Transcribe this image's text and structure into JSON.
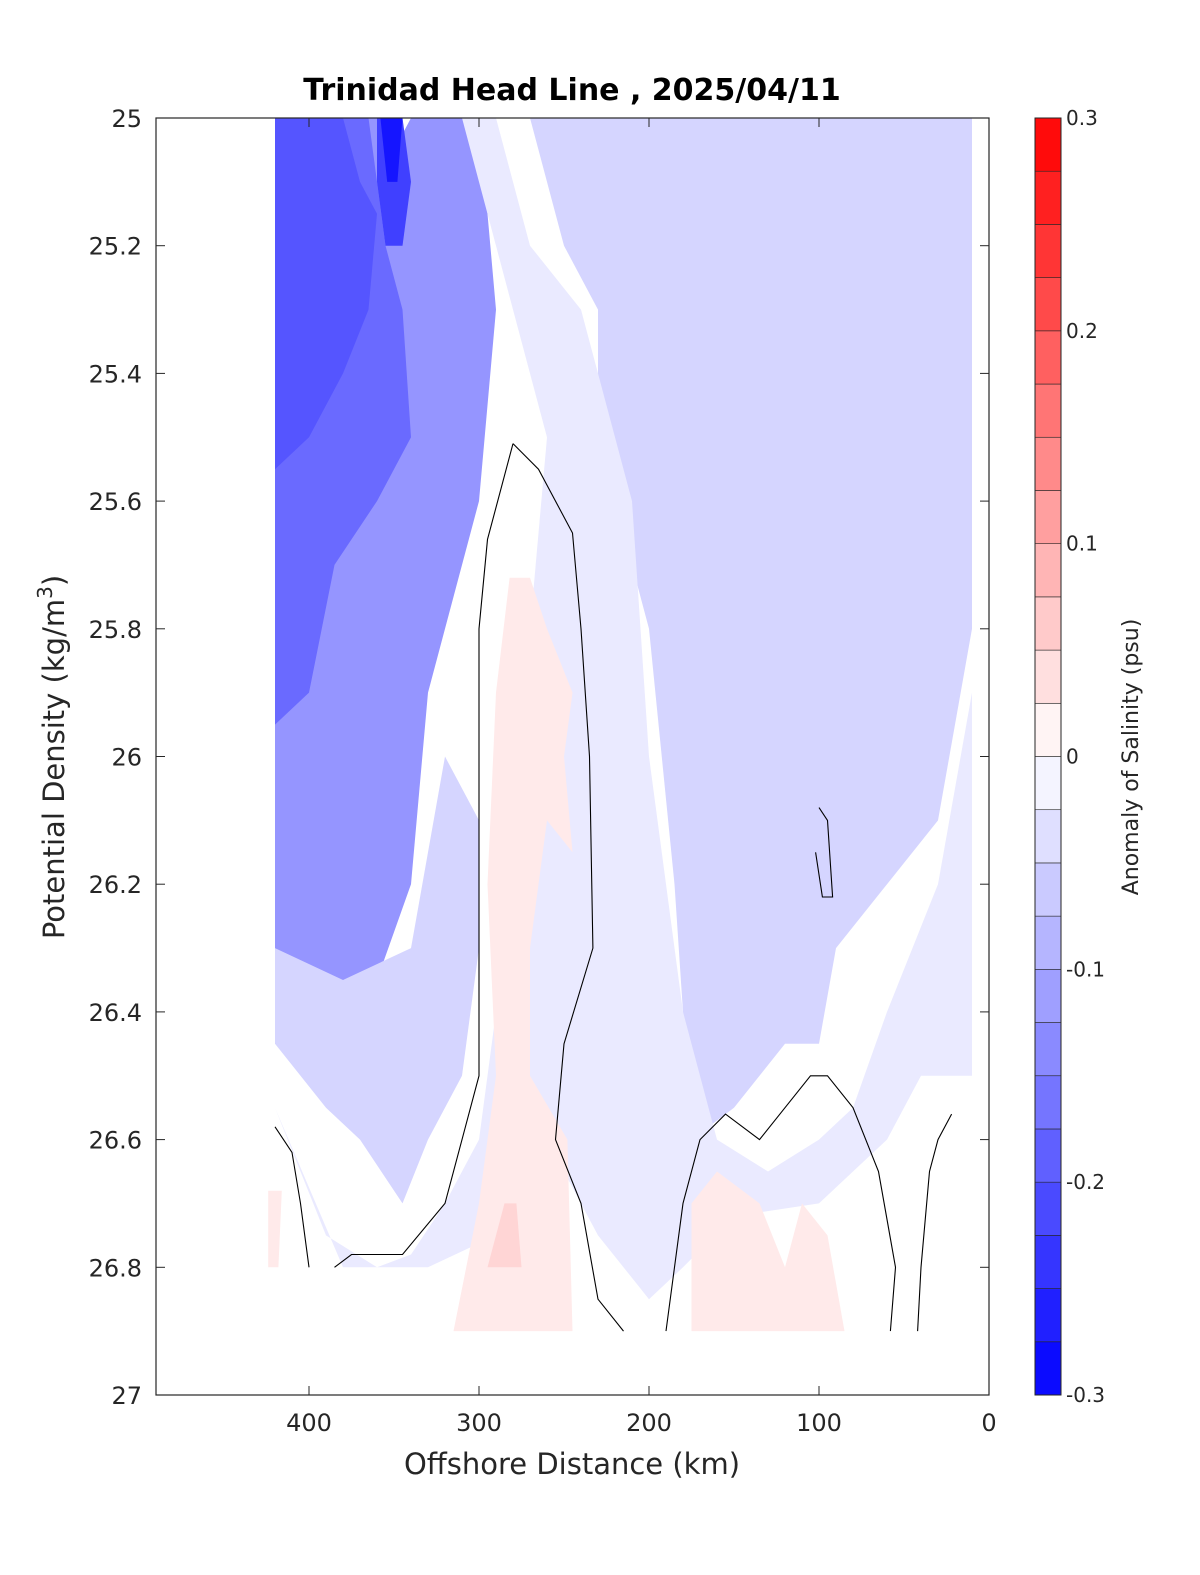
{
  "chart_data": {
    "type": "contour",
    "title": "Trinidad Head Line , 2025/04/11",
    "xlabel": "Offshore Distance (km)",
    "ylabel": "Potential Density (kg/m",
    "ylabel_superscript": "3",
    "ylabel_suffix": ")",
    "xlim": [
      490,
      0
    ],
    "ylim": [
      25,
      27
    ],
    "y_reversed": true,
    "x_reversed": true,
    "xticks": [
      {
        "value": 400,
        "label": "400"
      },
      {
        "value": 300,
        "label": "300"
      },
      {
        "value": 200,
        "label": "200"
      },
      {
        "value": 100,
        "label": "100"
      },
      {
        "value": 0,
        "label": "0"
      }
    ],
    "yticks": [
      {
        "value": 25,
        "label": "25"
      },
      {
        "value": 25.2,
        "label": "25.2"
      },
      {
        "value": 25.4,
        "label": "25.4"
      },
      {
        "value": 25.6,
        "label": "25.6"
      },
      {
        "value": 25.8,
        "label": "25.8"
      },
      {
        "value": 26,
        "label": "26"
      },
      {
        "value": 26.2,
        "label": "26.2"
      },
      {
        "value": 26.4,
        "label": "26.4"
      },
      {
        "value": 26.6,
        "label": "26.6"
      },
      {
        "value": 26.8,
        "label": "26.8"
      },
      {
        "value": 27,
        "label": "27"
      }
    ],
    "colorbar": {
      "label": "Anomaly of Salinity (psu)",
      "range": [
        -0.3,
        0.3
      ],
      "levels": [
        -0.3,
        -0.275,
        -0.25,
        -0.225,
        -0.2,
        -0.175,
        -0.15,
        -0.125,
        -0.1,
        -0.075,
        -0.05,
        -0.025,
        0,
        0.025,
        0.05,
        0.075,
        0.1,
        0.125,
        0.15,
        0.175,
        0.2,
        0.225,
        0.25,
        0.275,
        0.3
      ],
      "ticks": [
        {
          "value": 0.3,
          "label": "0.3"
        },
        {
          "value": 0.2,
          "label": "0.2"
        },
        {
          "value": 0.1,
          "label": "0.1"
        },
        {
          "value": 0,
          "label": "0"
        },
        {
          "value": -0.1,
          "label": "-0.1"
        },
        {
          "value": -0.2,
          "label": "-0.2"
        },
        {
          "value": -0.3,
          "label": "-0.3"
        }
      ],
      "negative_color": "#0000ff",
      "positive_color": "#ff0000"
    },
    "data_extent_x": [
      420,
      10
    ],
    "data_extent_y": [
      25,
      26.9
    ],
    "fill_regions": [
      {
        "level": -0.125,
        "points": [
          [
            420,
            25
          ],
          [
            360,
            25
          ],
          [
            350,
            25.05
          ],
          [
            340,
            25
          ],
          [
            300,
            25
          ],
          [
            290,
            25.3
          ],
          [
            300,
            25.6
          ],
          [
            330,
            25.9
          ],
          [
            340,
            26.2
          ],
          [
            360,
            26.35
          ],
          [
            390,
            26.5
          ],
          [
            420,
            26.45
          ]
        ]
      },
      {
        "level": -0.175,
        "points": [
          [
            420,
            25
          ],
          [
            365,
            25
          ],
          [
            355,
            25.2
          ],
          [
            345,
            25.3
          ],
          [
            340,
            25.5
          ],
          [
            360,
            25.6
          ],
          [
            385,
            25.7
          ],
          [
            400,
            25.9
          ],
          [
            420,
            25.95
          ]
        ]
      },
      {
        "level": -0.2,
        "points": [
          [
            420,
            25
          ],
          [
            380,
            25
          ],
          [
            370,
            25.1
          ],
          [
            360,
            25.15
          ],
          [
            365,
            25.3
          ],
          [
            380,
            25.4
          ],
          [
            400,
            25.5
          ],
          [
            420,
            25.55
          ]
        ]
      },
      {
        "level": -0.225,
        "points": [
          [
            360,
            25
          ],
          [
            345,
            25
          ],
          [
            340,
            25.1
          ],
          [
            345,
            25.2
          ],
          [
            355,
            25.2
          ],
          [
            360,
            25.1
          ]
        ]
      },
      {
        "level": -0.275,
        "points": [
          [
            358,
            25
          ],
          [
            345,
            25
          ],
          [
            348,
            25.1
          ],
          [
            354,
            25.1
          ]
        ]
      },
      {
        "level": -0.1,
        "points": [
          [
            195,
            25
          ],
          [
            180,
            25.3
          ],
          [
            190,
            25.6
          ],
          [
            170,
            25.8
          ],
          [
            165,
            25.6
          ],
          [
            155,
            25.3
          ],
          [
            145,
            25.05
          ],
          [
            150,
            25
          ]
        ]
      },
      {
        "level": -0.1,
        "points": [
          [
            95,
            25
          ],
          [
            80,
            25.3
          ],
          [
            80,
            25.6
          ],
          [
            60,
            25.8
          ],
          [
            40,
            25.5
          ],
          [
            25,
            25.3
          ],
          [
            15,
            25.0
          ]
        ]
      },
      {
        "level": -0.075,
        "points": [
          [
            240,
            25
          ],
          [
            230,
            25.2
          ],
          [
            195,
            25.4
          ],
          [
            170,
            25.6
          ],
          [
            165,
            25.9
          ],
          [
            140,
            26.1
          ],
          [
            130,
            26.2
          ],
          [
            150,
            25.7
          ],
          [
            140,
            25.4
          ],
          [
            110,
            25.2
          ],
          [
            100,
            25.0
          ]
        ]
      },
      {
        "level": -0.075,
        "points": [
          [
            125,
            26.1
          ],
          [
            110,
            26.15
          ],
          [
            115,
            26.35
          ],
          [
            140,
            26.4
          ],
          [
            145,
            26.2
          ]
        ]
      },
      {
        "level": -0.075,
        "points": [
          [
            200,
            26.35
          ],
          [
            185,
            26.4
          ],
          [
            195,
            26.5
          ],
          [
            210,
            26.45
          ]
        ]
      },
      {
        "level": -0.05,
        "points": [
          [
            270,
            25
          ],
          [
            250,
            25.2
          ],
          [
            230,
            25.3
          ],
          [
            230,
            25.5
          ],
          [
            200,
            25.8
          ],
          [
            185,
            26.2
          ],
          [
            175,
            26.6
          ],
          [
            150,
            26.55
          ],
          [
            120,
            26.45
          ],
          [
            100,
            26.45
          ],
          [
            90,
            26.3
          ],
          [
            60,
            26.2
          ],
          [
            30,
            26.1
          ],
          [
            10,
            25.8
          ],
          [
            10,
            25.0
          ]
        ]
      },
      {
        "level": -0.05,
        "points": [
          [
            420,
            26.45
          ],
          [
            390,
            26.55
          ],
          [
            370,
            26.6
          ],
          [
            345,
            26.7
          ],
          [
            330,
            26.6
          ],
          [
            310,
            26.5
          ],
          [
            300,
            26.3
          ],
          [
            300,
            26.1
          ],
          [
            320,
            26.0
          ],
          [
            340,
            26.3
          ],
          [
            380,
            26.35
          ],
          [
            420,
            26.3
          ]
        ]
      },
      {
        "level": -0.025,
        "points": [
          [
            420,
            26.55
          ],
          [
            390,
            26.75
          ],
          [
            360,
            26.8
          ],
          [
            340,
            26.78
          ],
          [
            320,
            26.7
          ],
          [
            300,
            26.6
          ],
          [
            290,
            26.4
          ],
          [
            280,
            26.2
          ],
          [
            270,
            25.8
          ],
          [
            260,
            25.5
          ],
          [
            280,
            25.3
          ],
          [
            300,
            25.1
          ],
          [
            310,
            25.0
          ],
          [
            290,
            25
          ],
          [
            270,
            25.2
          ],
          [
            240,
            25.3
          ],
          [
            210,
            25.6
          ],
          [
            200,
            26.0
          ],
          [
            180,
            26.4
          ],
          [
            160,
            26.6
          ],
          [
            130,
            26.65
          ],
          [
            100,
            26.6
          ],
          [
            80,
            26.55
          ],
          [
            60,
            26.4
          ],
          [
            30,
            26.2
          ],
          [
            10,
            25.9
          ],
          [
            10,
            26.5
          ],
          [
            40,
            26.5
          ],
          [
            60,
            26.6
          ],
          [
            100,
            26.7
          ],
          [
            150,
            26.72
          ],
          [
            180,
            26.8
          ],
          [
            200,
            26.85
          ],
          [
            230,
            26.75
          ],
          [
            260,
            26.6
          ],
          [
            290,
            26.75
          ],
          [
            330,
            26.8
          ],
          [
            380,
            26.8
          ]
        ]
      }
    ],
    "positive_regions": [
      {
        "level": 0.025,
        "points": [
          [
            315,
            26.9
          ],
          [
            245,
            26.9
          ],
          [
            248,
            26.6
          ],
          [
            270,
            26.5
          ],
          [
            270,
            26.3
          ],
          [
            260,
            26.1
          ],
          [
            245,
            26.15
          ],
          [
            250,
            26.0
          ],
          [
            245,
            25.9
          ],
          [
            260,
            25.8
          ],
          [
            270,
            25.72
          ],
          [
            282,
            25.72
          ],
          [
            290,
            25.9
          ],
          [
            295,
            26.2
          ],
          [
            290,
            26.5
          ],
          [
            300,
            26.7
          ]
        ]
      },
      {
        "level": 0.025,
        "points": [
          [
            175,
            26.9
          ],
          [
            85,
            26.9
          ],
          [
            95,
            26.75
          ],
          [
            110,
            26.7
          ],
          [
            120,
            26.8
          ],
          [
            135,
            26.7
          ],
          [
            160,
            26.65
          ],
          [
            175,
            26.7
          ]
        ]
      },
      {
        "level": 0.025,
        "points": [
          [
            424,
            26.68
          ],
          [
            416,
            26.68
          ],
          [
            418,
            26.8
          ],
          [
            424,
            26.8
          ]
        ]
      },
      {
        "level": 0.05,
        "points": [
          [
            295,
            26.8
          ],
          [
            275,
            26.8
          ],
          [
            278,
            26.7
          ],
          [
            285,
            26.7
          ]
        ]
      }
    ],
    "zero_contours": [
      [
        [
          280,
          25.51
        ],
        [
          265,
          25.55
        ],
        [
          245,
          25.65
        ],
        [
          240,
          25.8
        ],
        [
          235,
          26.0
        ],
        [
          233,
          26.3
        ],
        [
          250,
          26.45
        ],
        [
          255,
          26.6
        ],
        [
          240,
          26.7
        ],
        [
          230,
          26.85
        ],
        [
          215,
          26.9
        ]
      ],
      [
        [
          280,
          25.51
        ],
        [
          295,
          25.66
        ],
        [
          300,
          25.8
        ],
        [
          300,
          26.0
        ],
        [
          300,
          26.3
        ],
        [
          300,
          26.5
        ],
        [
          310,
          26.6
        ],
        [
          320,
          26.7
        ],
        [
          345,
          26.78
        ],
        [
          375,
          26.78
        ],
        [
          385,
          26.8
        ]
      ],
      [
        [
          190,
          26.9
        ],
        [
          180,
          26.7
        ],
        [
          170,
          26.6
        ],
        [
          155,
          26.56
        ],
        [
          135,
          26.6
        ],
        [
          120,
          26.55
        ],
        [
          105,
          26.5
        ],
        [
          95,
          26.5
        ],
        [
          80,
          26.55
        ],
        [
          65,
          26.65
        ],
        [
          55,
          26.8
        ],
        [
          58,
          26.9
        ]
      ],
      [
        [
          42,
          26.9
        ],
        [
          40,
          26.8
        ],
        [
          35,
          26.65
        ],
        [
          30,
          26.6
        ],
        [
          22,
          26.56
        ]
      ],
      [
        [
          400,
          26.8
        ],
        [
          405,
          26.7
        ],
        [
          410,
          26.62
        ],
        [
          420,
          26.58
        ]
      ],
      [
        [
          100,
          26.08
        ],
        [
          95,
          26.1
        ],
        [
          92,
          26.22
        ],
        [
          98,
          26.22
        ],
        [
          102,
          26.15
        ]
      ]
    ]
  }
}
